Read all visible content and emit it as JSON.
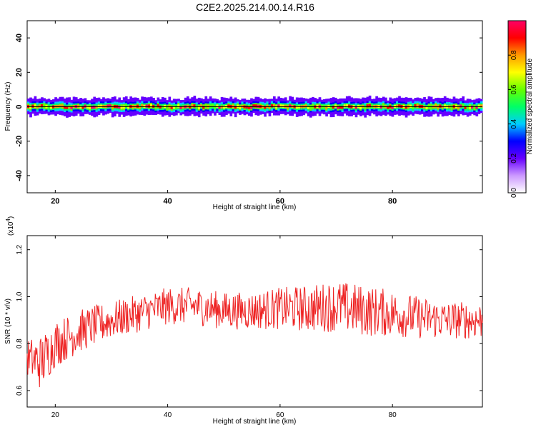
{
  "title": "C2E2.2025.214.00.14.R16",
  "chart_data": [
    {
      "type": "heatmap",
      "xlabel": "Height of straight line (km)",
      "ylabel": "Frequency (Hz)",
      "xlim": [
        15,
        96
      ],
      "ylim": [
        -50,
        50
      ],
      "xticks": [
        20,
        40,
        60,
        80
      ],
      "yticks": [
        40,
        20,
        0,
        -20,
        -40
      ],
      "ytick_labels": [
        "40",
        "20",
        "0",
        "-20",
        "-40"
      ],
      "band_center_hz": 0,
      "band_halfwidth_hz": 5,
      "colorbar": {
        "label": "Normalized spectral amplitude",
        "range": [
          0,
          1
        ],
        "ticks": [
          "0.0",
          "0.2",
          "0.4",
          "0.6",
          "0.8"
        ],
        "colors": [
          "#ffffff",
          "#cc99ff",
          "#6600ff",
          "#0000ff",
          "#00ccff",
          "#00ff66",
          "#66ff00",
          "#ffff00",
          "#ff9900",
          "#ff0000",
          "#ff0066"
        ]
      }
    },
    {
      "type": "line",
      "xlabel": "Height of straight line (km)",
      "ylabel": "SNR (10 * v/v)",
      "scale_note": "(x10",
      "scale_exp": "4",
      "scale_close": ")",
      "xlim": [
        15,
        96
      ],
      "ylim": [
        0.53,
        1.26
      ],
      "xticks": [
        20,
        40,
        60,
        80
      ],
      "yticks": [
        "0.6",
        "0.8",
        "1.0",
        "1.2"
      ],
      "color": "#ee2222",
      "x": [
        15,
        17.5,
        20,
        25,
        30,
        35,
        40,
        45,
        50,
        55,
        60,
        65,
        70,
        75,
        80,
        85,
        90,
        96
      ],
      "y": [
        0.74,
        0.72,
        0.8,
        0.86,
        0.9,
        0.93,
        0.96,
        0.96,
        0.94,
        0.94,
        0.95,
        0.95,
        0.96,
        0.94,
        0.93,
        0.91,
        0.9,
        0.9
      ],
      "amplitude": [
        0.08,
        0.12,
        0.1,
        0.09,
        0.08,
        0.08,
        0.08,
        0.08,
        0.08,
        0.08,
        0.09,
        0.1,
        0.11,
        0.11,
        0.1,
        0.09,
        0.08,
        0.08
      ]
    }
  ]
}
